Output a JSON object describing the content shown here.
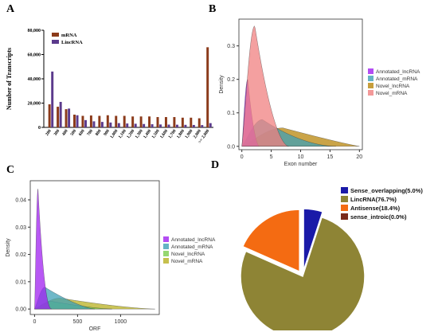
{
  "panels": {
    "a": "A",
    "b": "B",
    "c": "C",
    "d": "D"
  },
  "chart_data": [
    {
      "id": "A",
      "type": "bar",
      "ylabel": "Number of Transcripts",
      "yticks": [
        "0",
        "20,000",
        "40,000",
        "60,000",
        "80,000"
      ],
      "ylim": [
        0,
        80000
      ],
      "categories": [
        "200",
        "300",
        "400",
        "500",
        "600",
        "700",
        "800",
        "900",
        "1,000",
        "1,100",
        "1,200",
        "1,300",
        "1,400",
        "1,500",
        "1,600",
        "1,700",
        "1,800",
        "1,900",
        "2,000",
        ">= 2,000"
      ],
      "series": [
        {
          "name": "mRNA",
          "color": "#8B3A1A",
          "values": [
            19000,
            17000,
            15000,
            10500,
            9500,
            9800,
            9500,
            10000,
            9500,
            9500,
            9000,
            9000,
            9000,
            8500,
            8500,
            8500,
            8000,
            8000,
            7500,
            66000
          ]
        },
        {
          "name": "LincRNA",
          "color": "#5B3A8C",
          "values": [
            46000,
            21000,
            15500,
            10000,
            6000,
            5000,
            4500,
            4000,
            3500,
            3200,
            3000,
            2800,
            2600,
            2400,
            2300,
            2200,
            2100,
            2000,
            1900,
            3500
          ]
        }
      ]
    },
    {
      "id": "B",
      "type": "area",
      "xlabel": "Exon number",
      "ylabel": "Density",
      "xticks": [
        "0",
        "5",
        "10",
        "15",
        "20"
      ],
      "yticks": [
        "0.0",
        "0.1",
        "0.2",
        "0.3"
      ],
      "xlim": [
        -0.5,
        20.5
      ],
      "ylim": [
        -0.01,
        0.38
      ],
      "legend": [
        {
          "name": "Annotated_lncRNA",
          "color": "#A020F0"
        },
        {
          "name": "Annotated_mRNA",
          "color": "#3FA0B5"
        },
        {
          "name": "Novel_lncRNA",
          "color": "#B8860B"
        },
        {
          "name": "Novel_mRNA",
          "color": "#F08080"
        }
      ],
      "series": [
        {
          "name": "Novel_lncRNA",
          "peak_x": 7,
          "peak_y": 0.055,
          "left": 0,
          "right": 20
        },
        {
          "name": "Annotated_mRNA",
          "peak_x": 3.5,
          "peak_y": 0.08,
          "left": 0,
          "right": 16
        },
        {
          "name": "Annotated_lncRNA",
          "peak_x": 1,
          "peak_y": 0.2,
          "left": 0,
          "right": 3
        },
        {
          "name": "Novel_mRNA",
          "peak_x": 2.2,
          "peak_y": 0.36,
          "left": 0,
          "right": 8
        }
      ]
    },
    {
      "id": "C",
      "type": "area",
      "xlabel": "ORF",
      "ylabel": "Density",
      "xticks": [
        "0",
        "500",
        "1000"
      ],
      "yticks": [
        "0.00",
        "0.01",
        "0.02",
        "0.03",
        "0.04"
      ],
      "xlim": [
        -50,
        1450
      ],
      "ylim": [
        -0.002,
        0.047
      ],
      "legend": [
        {
          "name": "Annotated_lncRNA",
          "color": "#A020F0"
        },
        {
          "name": "Annotated_mRNA",
          "color": "#3FA0B5"
        },
        {
          "name": "Novel_lncRNA",
          "color": "#7CCD4C"
        },
        {
          "name": "Novel_mRNA",
          "color": "#B8B020"
        }
      ],
      "series": [
        {
          "name": "Novel_mRNA",
          "peak_x": 300,
          "peak_y": 0.004,
          "left": 0,
          "right": 1400
        },
        {
          "name": "Novel_lncRNA",
          "peak_x": 200,
          "peak_y": 0.0028,
          "left": 0,
          "right": 900
        },
        {
          "name": "Annotated_mRNA",
          "peak_x": 120,
          "peak_y": 0.008,
          "left": 0,
          "right": 700
        },
        {
          "name": "Annotated_lncRNA",
          "peak_x": 40,
          "peak_y": 0.044,
          "left": 0,
          "right": 200
        }
      ]
    },
    {
      "id": "D",
      "type": "pie",
      "legend": [
        {
          "name": "Sense_overlapping(5.0%)",
          "color": "#1A1AA8"
        },
        {
          "name": "LincRNA(76.7%)",
          "color": "#8E8435"
        },
        {
          "name": "Antisense(18.4%)",
          "color": "#F46B12"
        },
        {
          "name": "sense_introic(0.0%)",
          "color": "#7A2A1A"
        }
      ],
      "categories": [
        "Sense_overlapping",
        "LincRNA",
        "Antisense",
        "sense_introic"
      ],
      "values": [
        5.0,
        76.7,
        18.4,
        0.0
      ]
    }
  ]
}
